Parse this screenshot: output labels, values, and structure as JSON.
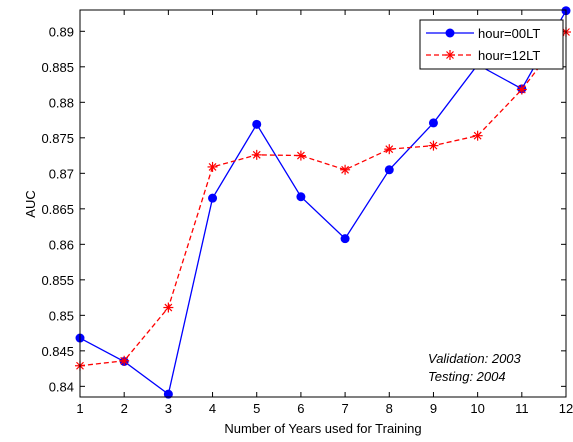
{
  "chart_data": {
    "type": "line",
    "xlabel": "Number of Years used for Training",
    "ylabel": "AUC",
    "x": [
      1,
      2,
      3,
      4,
      5,
      6,
      7,
      8,
      9,
      10,
      11,
      12
    ],
    "xlim": [
      1,
      12
    ],
    "ylim": [
      0.8385,
      0.893
    ],
    "xticks": [
      "1",
      "2",
      "3",
      "4",
      "5",
      "6",
      "7",
      "8",
      "9",
      "10",
      "11",
      "12"
    ],
    "yticks": [
      0.84,
      0.845,
      0.85,
      0.855,
      0.86,
      0.865,
      0.87,
      0.875,
      0.88,
      0.885,
      0.89
    ],
    "ytick_labels": [
      "0.84",
      "0.845",
      "0.85",
      "0.855",
      "0.86",
      "0.865",
      "0.87",
      "0.875",
      "0.88",
      "0.885",
      "0.89"
    ],
    "grid": false,
    "legend_position": "top-right",
    "series": [
      {
        "name": "hour=00LT",
        "values": [
          0.8468,
          0.8435,
          0.8389,
          0.8665,
          0.8769,
          0.8667,
          0.8608,
          0.8705,
          0.8771,
          0.8853,
          0.8819,
          0.8929
        ],
        "color": "#0000ff",
        "line_style": "solid",
        "marker": "circle"
      },
      {
        "name": "hour=12LT",
        "values": [
          0.8429,
          0.8436,
          0.8511,
          0.8709,
          0.8726,
          0.8725,
          0.8705,
          0.8734,
          0.8739,
          0.8753,
          0.8818,
          0.8899
        ],
        "color": "#ff0000",
        "line_style": "dashed",
        "marker": "star"
      }
    ],
    "annotations": [
      "Validation: 2003",
      "Testing: 2004"
    ]
  }
}
